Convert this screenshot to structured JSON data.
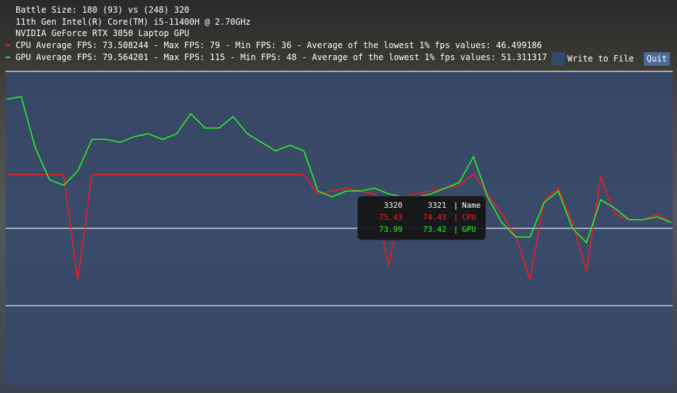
{
  "header": {
    "battle_size": "Battle Size: 180 (93) vs (248) 320",
    "cpu_name": "11th Gen Intel(R) Core(TM) i5-11400H @ 2.70GHz",
    "gpu_name": "NVIDIA GeForce RTX 3050 Laptop GPU",
    "cpu_stats": "CPU Average FPS: 73.508244 - Max FPS: 79 - Min FPS: 36 - Average of the lowest 1% fps values: 46.499186",
    "gpu_stats": "GPU Average FPS: 79.564201 - Max FPS: 115 - Min FPS: 48 - Average of the lowest 1% fps values: 51.311317"
  },
  "buttons": {
    "write_to_file": "Write to File",
    "quit": "Quit"
  },
  "colors": {
    "cpu": "#ff1a1a",
    "gpu": "#22ff22",
    "plot_bg": "#34486e",
    "grid": "#d0d0d0"
  },
  "tooltip": {
    "header": [
      "3320",
      "3321",
      "|",
      "Name"
    ],
    "rows": [
      {
        "v1": "75.43",
        "v2": "74.43",
        "sep": "|",
        "name": "CPU",
        "color": "#ff2020"
      },
      {
        "v1": "73.99",
        "v2": "73.42",
        "sep": "|",
        "name": "GPU",
        "color": "#22ff22"
      }
    ]
  },
  "chart_data": {
    "type": "line",
    "ylim": [
      0,
      110
    ],
    "grid": true,
    "gridlines_y": [
      28,
      55,
      110
    ],
    "series": [
      {
        "name": "CPU",
        "color": "#ff1a1a",
        "values": [
          73.7,
          73.7,
          73.7,
          73.7,
          73.7,
          37,
          73.7,
          73.7,
          73.7,
          73.7,
          73.7,
          73.7,
          73.7,
          73.7,
          73.7,
          73.7,
          73.7,
          73.7,
          73.7,
          73.7,
          73.7,
          73.7,
          67,
          68,
          69,
          68,
          67,
          42,
          66,
          67,
          68,
          69,
          70,
          74,
          67,
          60,
          52,
          37,
          65,
          69,
          57,
          40,
          73,
          60,
          58,
          58,
          60,
          57
        ]
      },
      {
        "name": "GPU",
        "color": "#22ff22",
        "values": [
          100,
          101,
          83,
          72,
          70,
          75,
          86,
          86,
          85,
          87,
          88,
          86,
          88,
          95,
          90,
          90,
          94,
          88,
          85,
          82,
          84,
          82,
          68,
          66,
          68,
          68,
          69,
          67,
          66,
          66,
          67,
          69,
          71,
          80,
          66,
          57,
          52,
          52,
          64,
          68,
          55,
          50,
          65,
          62,
          58,
          58,
          59,
          57
        ]
      }
    ]
  }
}
